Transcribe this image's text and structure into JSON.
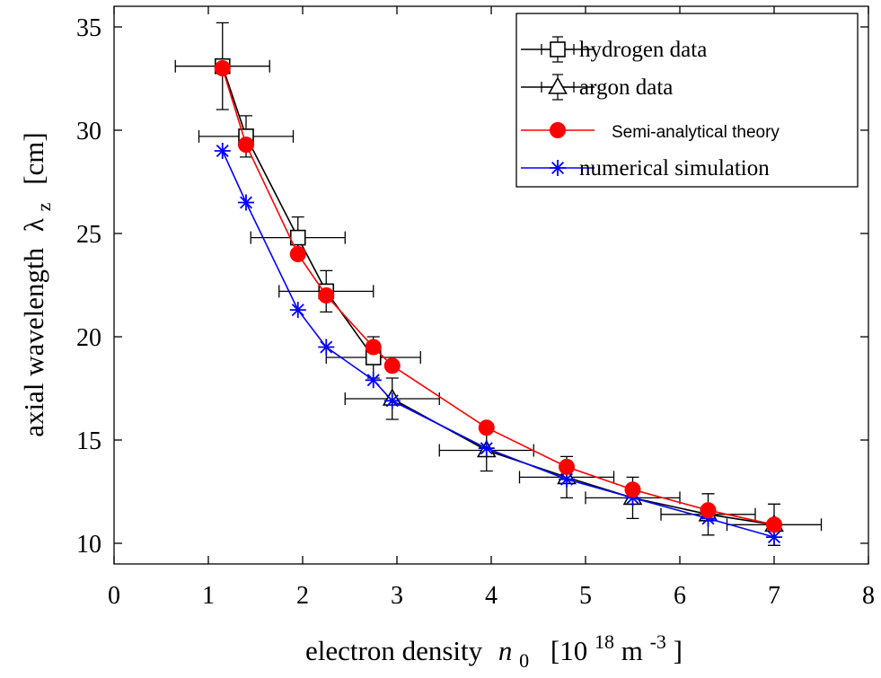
{
  "chart_data": {
    "type": "line",
    "xlabel": {
      "prefix": "electron density",
      "symbol": "n",
      "symbol_sub": "0",
      "unit_open": "[10",
      "unit_exp": "18",
      "unit_mid": " m",
      "unit_exp2": "-3",
      "unit_close": " ]"
    },
    "ylabel": {
      "prefix": "axial wavelength",
      "symbol": "λ",
      "symbol_sub": "z",
      "unit": "[cm]"
    },
    "xlim": [
      0,
      8
    ],
    "ylim": [
      9,
      36
    ],
    "x_ticks": [
      0,
      1,
      2,
      3,
      4,
      5,
      6,
      7,
      8
    ],
    "y_ticks": [
      10,
      15,
      20,
      25,
      30,
      35
    ],
    "grid": false,
    "legend_position": "top-right",
    "series": [
      {
        "name": "hydrogen data",
        "marker": "square",
        "color": "#000000",
        "x": [
          1.15,
          1.4,
          1.95,
          2.25,
          2.75
        ],
        "y": [
          33.1,
          29.7,
          24.8,
          22.2,
          19.0
        ],
        "xerr": [
          0.5,
          0.5,
          0.5,
          0.5,
          0.5
        ],
        "yerr": [
          2.1,
          1.0,
          1.0,
          1.0,
          1.0
        ]
      },
      {
        "name": "argon data",
        "marker": "triangle",
        "color": "#000000",
        "x": [
          2.95,
          3.95,
          4.8,
          5.5,
          6.3,
          7.0
        ],
        "y": [
          17.0,
          14.5,
          13.2,
          12.2,
          11.4,
          10.9
        ],
        "xerr": [
          0.5,
          0.5,
          0.5,
          0.5,
          0.5,
          0.5
        ],
        "yerr": [
          1.0,
          1.0,
          1.0,
          1.0,
          1.0,
          1.0
        ]
      },
      {
        "name": "Semi-analytical theory",
        "marker": "filled-circle",
        "color": "#ff0000",
        "x": [
          1.15,
          1.4,
          1.95,
          2.25,
          2.75,
          2.95,
          3.95,
          4.8,
          5.5,
          6.3,
          7.0
        ],
        "y": [
          33.0,
          29.3,
          24.0,
          22.0,
          19.5,
          18.6,
          15.6,
          13.7,
          12.6,
          11.6,
          10.9
        ]
      },
      {
        "name": "numerical simulation",
        "marker": "asterisk",
        "color": "#0000ff",
        "x": [
          1.15,
          1.4,
          1.95,
          2.25,
          2.75,
          2.95,
          3.95,
          4.8,
          5.5,
          6.3,
          7.0
        ],
        "y": [
          29.0,
          26.5,
          21.3,
          19.5,
          17.9,
          16.9,
          14.6,
          13.1,
          12.2,
          11.2,
          10.3
        ]
      }
    ]
  }
}
